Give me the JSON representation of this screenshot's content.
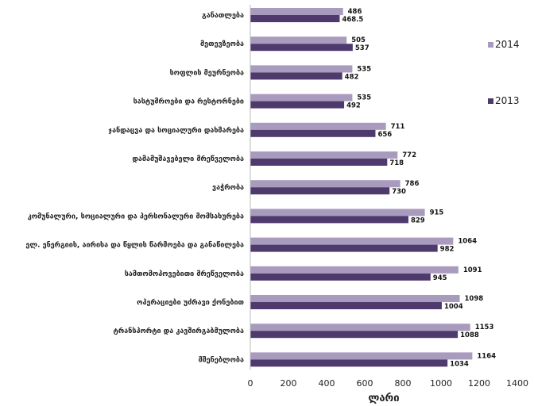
{
  "chart_data": {
    "type": "bar",
    "orientation": "horizontal",
    "categories": [
      "განათლება",
      "მეთევზეობა",
      "სოფლის მეურნეობა",
      "სასტუმროები და რესტორნები",
      "ჯანდაცვა და სოციალური დახმარება",
      "დამამუშავებელი მრეწველობა",
      "ვაჭრობა",
      "კომუნალური, სოციალური და პერსონალური მომსახურება",
      "ელ. ენერგიის, აირისა და წყლის წარმოება და განაწილება",
      "სამთომოპოვებითი მრეწველობა",
      "ოპერაციები უძრავი ქონებით",
      "ტრანსპორტი და კავშირგაბმულობა",
      "მშენებლობა"
    ],
    "series": [
      {
        "name": "2014",
        "color": "#a99bbd",
        "values": [
          486,
          505,
          535,
          535,
          711,
          772,
          786,
          915,
          1064,
          1091,
          1098,
          1153,
          1164
        ]
      },
      {
        "name": "2013",
        "color": "#4f3a6d",
        "values": [
          468.5,
          537,
          482,
          492,
          656,
          718,
          730,
          829,
          982,
          945,
          1004,
          1088,
          1034
        ]
      }
    ],
    "value_labels_2014": [
      "486",
      "505",
      "535",
      "535",
      "711",
      "772",
      "786",
      "915",
      "1064",
      "1091",
      "1098",
      "1153",
      "1164"
    ],
    "value_labels_2013": [
      "468.5",
      "537",
      "482",
      "492",
      "656",
      "718",
      "730",
      "829",
      "982",
      "945",
      "1004",
      "1088",
      "1034"
    ],
    "xlabel": "ლარი",
    "xlim": [
      0,
      1400
    ],
    "xticks": [
      "0",
      "200",
      "400",
      "600",
      "800",
      "1000",
      "1200",
      "1400"
    ],
    "grid": false,
    "legend_position": "right"
  }
}
